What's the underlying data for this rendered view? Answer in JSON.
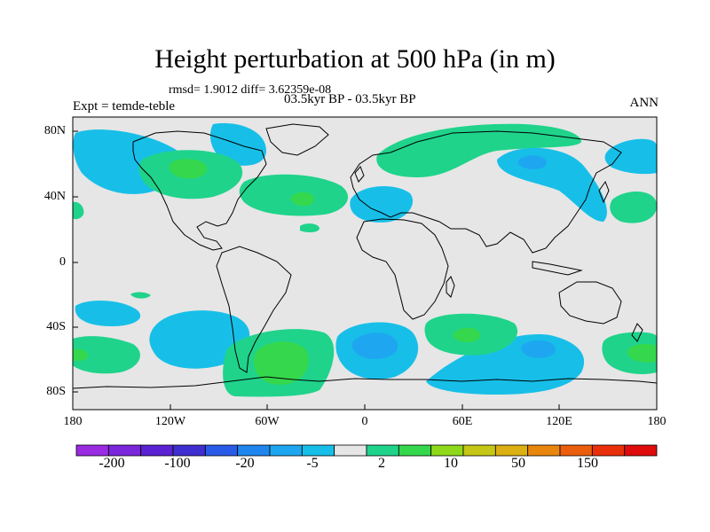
{
  "figure": {
    "title": "Height perturbation at 500 hPa (in m)",
    "stats": "rmsd= 1.9012 diff= 3.62359e-08",
    "period": "03.5kyr BP - 03.5kyr BP",
    "experiment": "Expt = temde-teble",
    "season": "ANN"
  },
  "axes": {
    "lat_ticks": [
      "80N",
      "40N",
      "0",
      "40S",
      "80S"
    ],
    "lon_ticks": [
      "180",
      "120W",
      "60W",
      "0",
      "60E",
      "120E",
      "180"
    ]
  },
  "colorbar": {
    "colors": [
      "#9a2be2",
      "#7a27dc",
      "#5a22d2",
      "#3f2ed0",
      "#2a5be8",
      "#1f86ef",
      "#1ea6f0",
      "#17bfe8",
      "#e6e6e6",
      "#1fd38b",
      "#35d84c",
      "#8fd91a",
      "#c6c617",
      "#dcb012",
      "#e8860e",
      "#ea5e0c",
      "#e9300b",
      "#e00b0b"
    ],
    "labels": [
      "-200",
      "-100",
      "-20",
      "-5",
      "2",
      "10",
      "50",
      "150"
    ]
  },
  "map": {
    "background_color": "#e6e6e6",
    "positive_color": "#1fd38b",
    "strong_positive_color": "#35d84c",
    "negative_color": "#17bfe8",
    "strong_negative_color": "#1ea6f0"
  }
}
